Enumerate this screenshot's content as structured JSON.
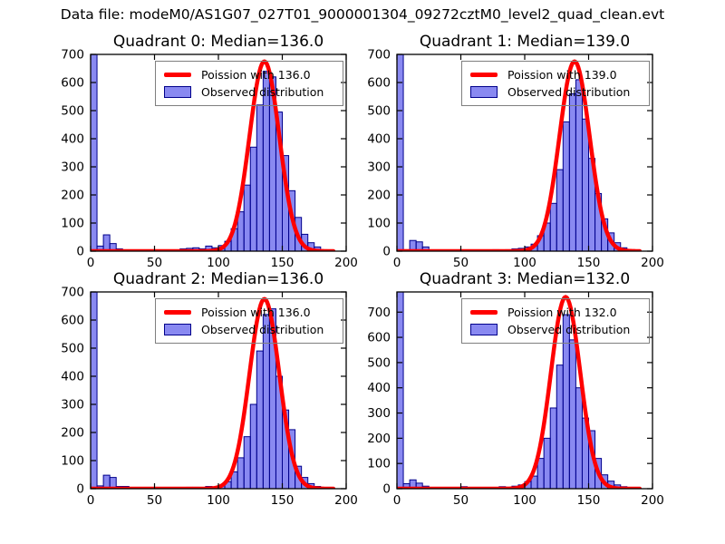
{
  "figure": {
    "title": "Data file: modeM0/AS1G07_027T01_9000001304_09272cztM0_level2_quad_clean.evt",
    "background": "#ffffff"
  },
  "style": {
    "bar_fill": "rgba(40,40,230,0.55)",
    "bar_edge": "#00008b",
    "curve_color": "#ff0000",
    "axis_color": "#000000",
    "legend_border": "#7f7f7f",
    "text_color": "#000000"
  },
  "chart_data": [
    {
      "type": "bar",
      "title": "Quadrant 0: Median=136.0",
      "median": 136.0,
      "legend": [
        {
          "label": "Poission with 136.0",
          "sample": "red-line"
        },
        {
          "label": "Observed distribution",
          "sample": "blue-patch"
        }
      ],
      "xlim": [
        0,
        200
      ],
      "ylim": [
        0,
        700
      ],
      "xticks": [
        0,
        50,
        100,
        150,
        200
      ],
      "yticks": [
        0,
        100,
        200,
        300,
        400,
        500,
        600,
        700
      ],
      "bin_width": 5,
      "bin_starts": [
        0,
        5,
        10,
        15,
        20,
        25,
        30,
        35,
        40,
        45,
        50,
        55,
        60,
        65,
        70,
        75,
        80,
        85,
        90,
        95,
        100,
        105,
        110,
        115,
        120,
        125,
        130,
        135,
        140,
        145,
        150,
        155,
        160,
        165,
        170,
        175,
        180,
        185,
        190,
        195
      ],
      "counts": [
        700,
        18,
        58,
        27,
        8,
        0,
        0,
        2,
        0,
        0,
        0,
        0,
        0,
        3,
        8,
        10,
        12,
        8,
        18,
        12,
        20,
        35,
        80,
        140,
        235,
        370,
        520,
        640,
        620,
        495,
        340,
        215,
        120,
        60,
        30,
        15,
        5,
        2,
        0,
        0
      ],
      "curve": {
        "name": "poisson-fit",
        "lambda": 136.0,
        "amplitude": 675,
        "range": [
          0,
          190
        ]
      }
    },
    {
      "type": "bar",
      "title": "Quadrant 1: Median=139.0",
      "median": 139.0,
      "legend": [
        {
          "label": "Poission with 139.0",
          "sample": "red-line"
        },
        {
          "label": "Observed distribution",
          "sample": "blue-patch"
        }
      ],
      "xlim": [
        0,
        200
      ],
      "ylim": [
        0,
        700
      ],
      "xticks": [
        0,
        50,
        100,
        150,
        200
      ],
      "yticks": [
        0,
        100,
        200,
        300,
        400,
        500,
        600,
        700
      ],
      "bin_width": 5,
      "bin_starts": [
        0,
        5,
        10,
        15,
        20,
        25,
        30,
        35,
        40,
        45,
        50,
        55,
        60,
        65,
        70,
        75,
        80,
        85,
        90,
        95,
        100,
        105,
        110,
        115,
        120,
        125,
        130,
        135,
        140,
        145,
        150,
        155,
        160,
        165,
        170,
        175,
        180,
        185,
        190,
        195
      ],
      "counts": [
        700,
        5,
        38,
        33,
        15,
        0,
        0,
        0,
        0,
        0,
        2,
        0,
        0,
        2,
        3,
        5,
        3,
        5,
        8,
        10,
        15,
        25,
        55,
        100,
        170,
        290,
        460,
        560,
        610,
        470,
        330,
        205,
        115,
        65,
        30,
        12,
        5,
        2,
        0,
        0
      ],
      "curve": {
        "name": "poisson-fit",
        "lambda": 139.0,
        "amplitude": 675,
        "range": [
          0,
          190
        ]
      }
    },
    {
      "type": "bar",
      "title": "Quadrant 2: Median=136.0",
      "median": 136.0,
      "legend": [
        {
          "label": "Poission with 136.0",
          "sample": "red-line"
        },
        {
          "label": "Observed distribution",
          "sample": "blue-patch"
        }
      ],
      "xlim": [
        0,
        200
      ],
      "ylim": [
        0,
        700
      ],
      "xticks": [
        0,
        50,
        100,
        150,
        200
      ],
      "yticks": [
        0,
        100,
        200,
        300,
        400,
        500,
        600,
        700
      ],
      "bin_width": 5,
      "bin_starts": [
        0,
        5,
        10,
        15,
        20,
        25,
        30,
        35,
        40,
        45,
        50,
        55,
        60,
        65,
        70,
        75,
        80,
        85,
        90,
        95,
        100,
        105,
        110,
        115,
        120,
        125,
        130,
        135,
        140,
        145,
        150,
        155,
        160,
        165,
        170,
        175,
        180,
        185,
        190,
        195
      ],
      "counts": [
        700,
        10,
        48,
        40,
        8,
        8,
        0,
        0,
        2,
        0,
        0,
        2,
        0,
        2,
        3,
        5,
        5,
        3,
        8,
        5,
        12,
        25,
        60,
        110,
        185,
        300,
        490,
        620,
        640,
        400,
        280,
        210,
        80,
        40,
        18,
        8,
        3,
        0,
        0,
        0
      ],
      "curve": {
        "name": "poisson-fit",
        "lambda": 136.0,
        "amplitude": 675,
        "range": [
          0,
          190
        ]
      }
    },
    {
      "type": "bar",
      "title": "Quadrant 3: Median=132.0",
      "median": 132.0,
      "legend": [
        {
          "label": "Poission with 132.0",
          "sample": "red-line"
        },
        {
          "label": "Observed distribution",
          "sample": "blue-patch"
        }
      ],
      "xlim": [
        0,
        200
      ],
      "ylim": [
        0,
        780
      ],
      "xticks": [
        0,
        50,
        100,
        150,
        200
      ],
      "yticks": [
        0,
        100,
        200,
        300,
        400,
        500,
        600,
        700
      ],
      "bin_width": 5,
      "bin_starts": [
        0,
        5,
        10,
        15,
        20,
        25,
        30,
        35,
        40,
        45,
        50,
        55,
        60,
        65,
        70,
        75,
        80,
        85,
        90,
        95,
        100,
        105,
        110,
        115,
        120,
        125,
        130,
        135,
        140,
        145,
        150,
        155,
        160,
        165,
        170,
        175,
        180,
        185,
        190,
        195
      ],
      "counts": [
        780,
        20,
        35,
        22,
        10,
        5,
        2,
        2,
        3,
        2,
        8,
        2,
        2,
        3,
        3,
        5,
        8,
        5,
        10,
        15,
        28,
        50,
        120,
        200,
        320,
        490,
        690,
        590,
        400,
        280,
        230,
        120,
        55,
        30,
        15,
        8,
        5,
        2,
        0,
        0
      ],
      "curve": {
        "name": "poisson-fit",
        "lambda": 132.0,
        "amplitude": 760,
        "range": [
          0,
          190
        ]
      }
    }
  ]
}
